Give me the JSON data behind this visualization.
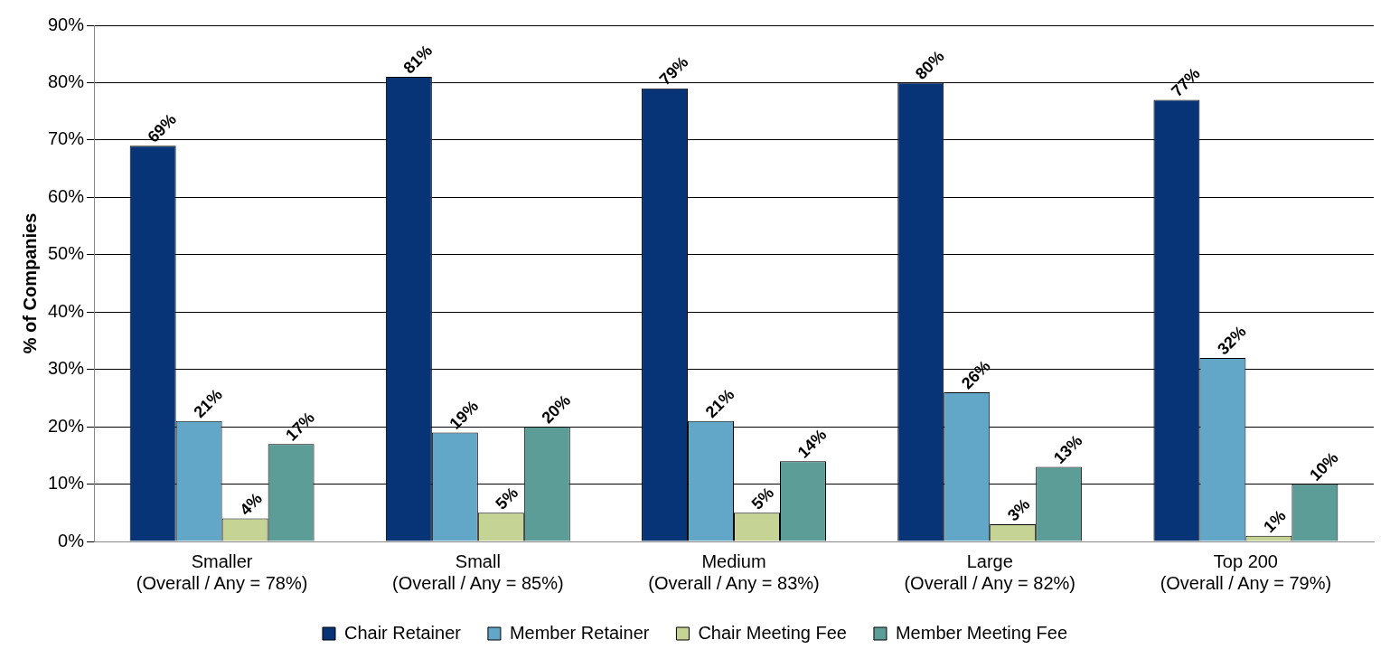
{
  "chart_data": {
    "type": "bar",
    "ylabel": "% of Companies",
    "categories": [
      "Smaller\n(Overall / Any = 78%)",
      "Small\n(Overall / Any = 85%)",
      "Medium\n(Overall / Any = 83%)",
      "Large\n(Overall / Any = 82%)",
      "Top 200\n(Overall / Any = 79%)"
    ],
    "series": [
      {
        "name": "Chair Retainer",
        "color": "#073476",
        "values": [
          69,
          81,
          79,
          80,
          77
        ],
        "value_labels": [
          "69%",
          "81%",
          "79%",
          "80%",
          "77%"
        ]
      },
      {
        "name": "Member Retainer",
        "color": "#62a6c8",
        "values": [
          21,
          19,
          21,
          26,
          32
        ],
        "value_labels": [
          "21%",
          "19%",
          "21%",
          "26%",
          "32%"
        ]
      },
      {
        "name": "Chair Meeting Fee",
        "color": "#c5d394",
        "values": [
          4,
          5,
          5,
          3,
          1
        ],
        "value_labels": [
          "4%",
          "5%",
          "5%",
          "3%",
          "1%"
        ]
      },
      {
        "name": "Member Meeting Fee",
        "color": "#5c9e97",
        "values": [
          17,
          20,
          14,
          13,
          10
        ],
        "value_labels": [
          "17%",
          "20%",
          "14%",
          "13%",
          "10%"
        ]
      }
    ],
    "ylim": [
      0,
      90
    ],
    "yticks": [
      {
        "value": 0,
        "label": "0%"
      },
      {
        "value": 10,
        "label": "10%"
      },
      {
        "value": 20,
        "label": "20%"
      },
      {
        "value": 30,
        "label": "30%"
      },
      {
        "value": 40,
        "label": "40%"
      },
      {
        "value": 50,
        "label": "50%"
      },
      {
        "value": 60,
        "label": "60%"
      },
      {
        "value": 70,
        "label": "70%"
      },
      {
        "value": 80,
        "label": "80%"
      },
      {
        "value": 90,
        "label": "90%"
      }
    ],
    "grid": "y",
    "legend": "bottom"
  }
}
